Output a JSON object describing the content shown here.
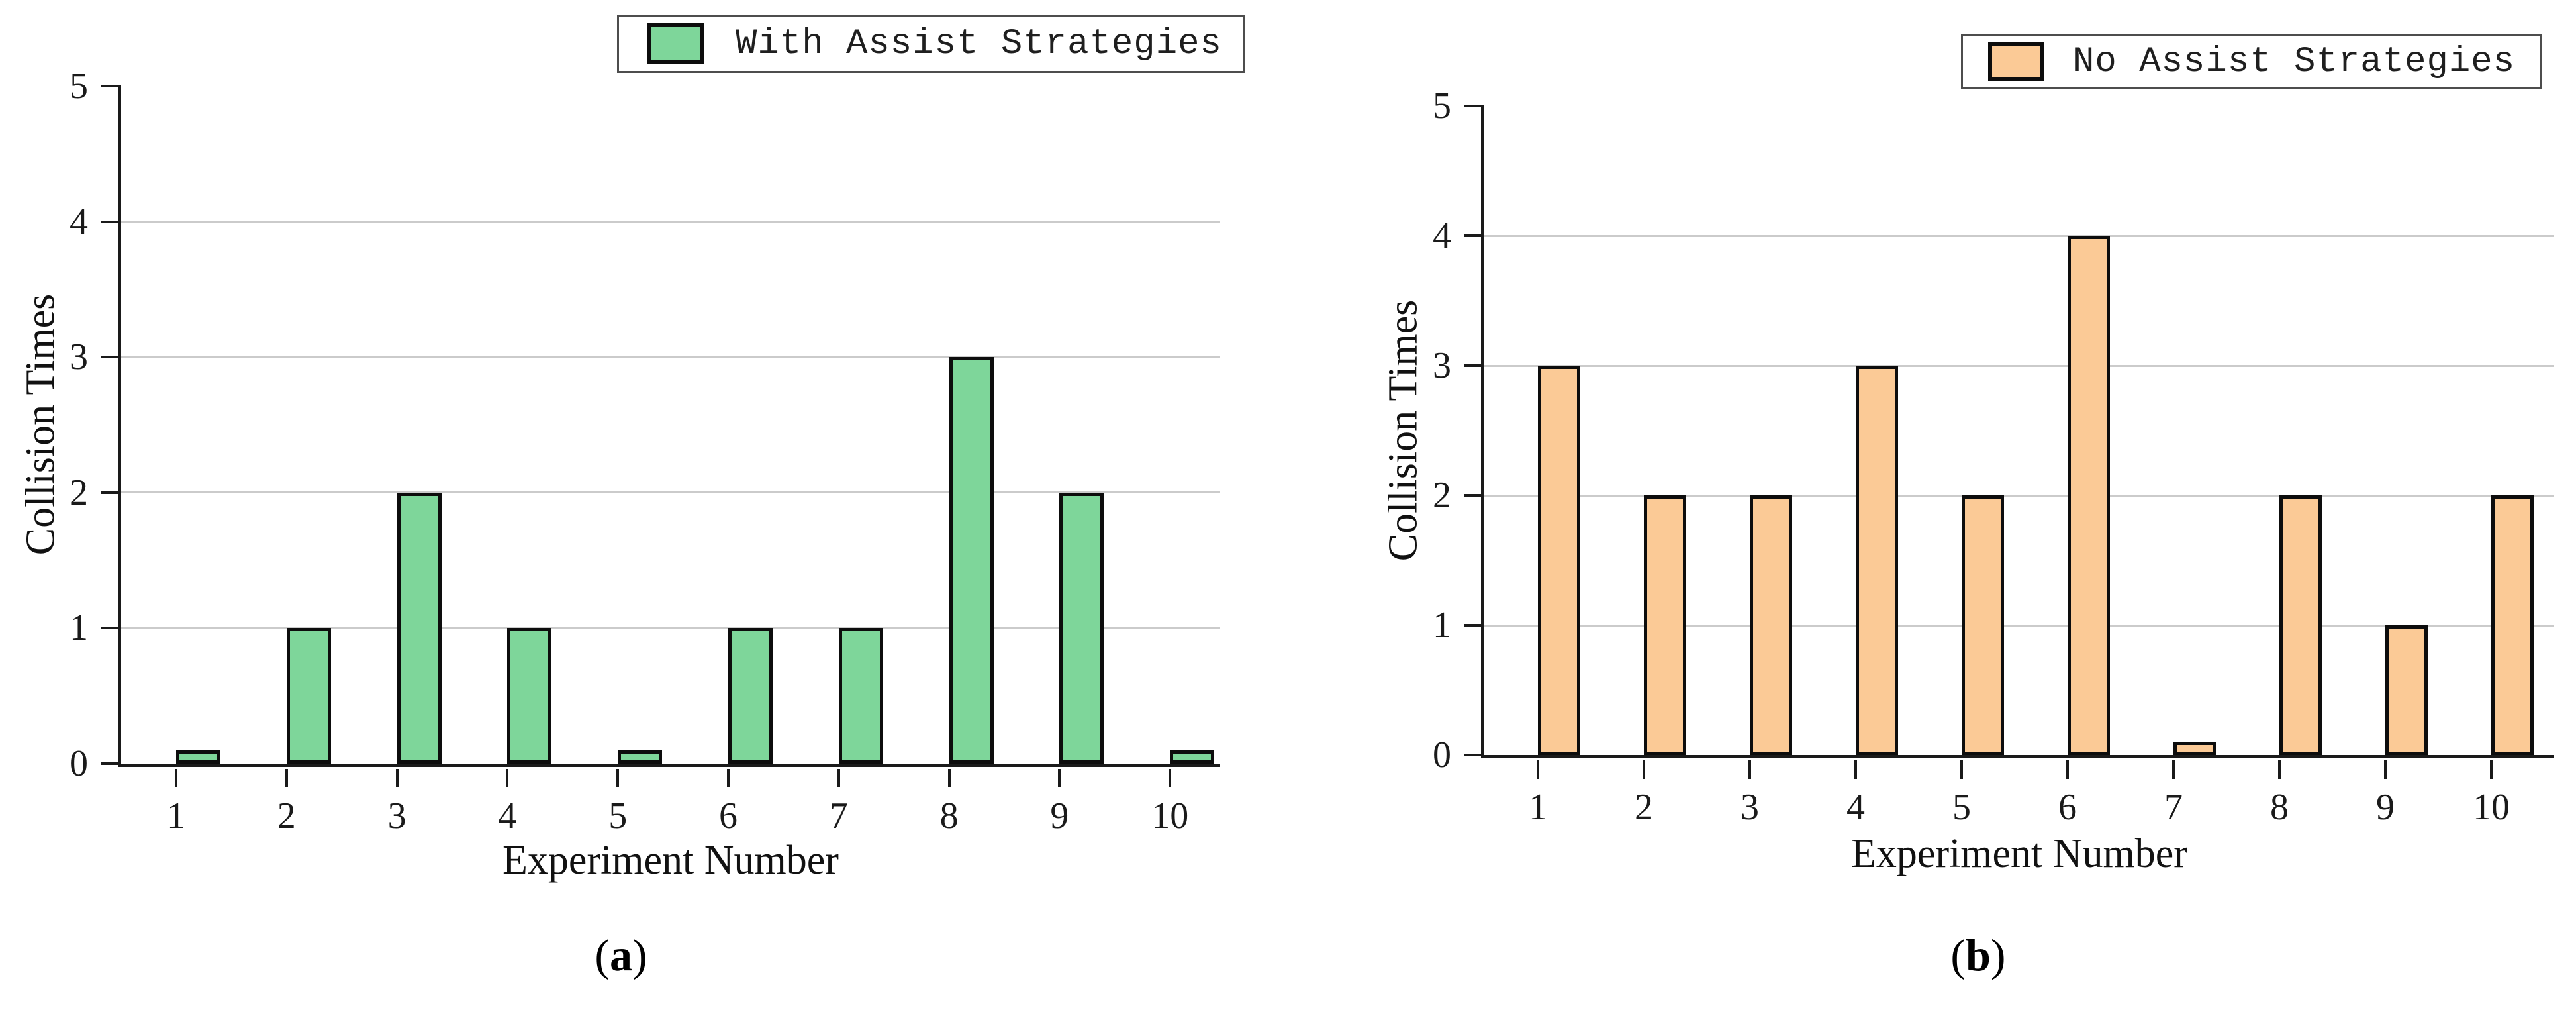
{
  "figure_type": "two-panel bar chart figure",
  "panel_a_caption": {
    "open": "(",
    "letter": "a",
    "close": ")"
  },
  "panel_b_caption": {
    "open": "(",
    "letter": "b",
    "close": ")"
  },
  "chart_data": [
    {
      "type": "bar",
      "panel": "a",
      "legend": "With Assist Strategies",
      "legend_position": "upper right",
      "categories": [
        "1",
        "2",
        "3",
        "4",
        "5",
        "6",
        "7",
        "8",
        "9",
        "10"
      ],
      "values": [
        0.1,
        1,
        2,
        1,
        0.1,
        1,
        1,
        3,
        2,
        0.1
      ],
      "xlabel": "Experiment Number",
      "ylabel": "Collision Times",
      "ylim": [
        0,
        5
      ],
      "yticks": [
        0,
        1,
        2,
        3,
        4,
        5
      ],
      "grid": true,
      "bar_fill": "#7ED69A",
      "bar_edge": "#0d0d0d"
    },
    {
      "type": "bar",
      "panel": "b",
      "legend": "No Assist Strategies",
      "legend_position": "upper right",
      "categories": [
        "1",
        "2",
        "3",
        "4",
        "5",
        "6",
        "7",
        "8",
        "9",
        "10"
      ],
      "values": [
        3,
        2,
        2,
        3,
        2,
        4,
        0.1,
        2,
        1,
        2
      ],
      "xlabel": "Experiment Number",
      "ylabel": "Collision Times",
      "ylim": [
        0,
        5
      ],
      "yticks": [
        0,
        1,
        2,
        3,
        4,
        5
      ],
      "grid": true,
      "bar_fill": "#FBCA96",
      "bar_edge": "#0d0d0d"
    }
  ]
}
